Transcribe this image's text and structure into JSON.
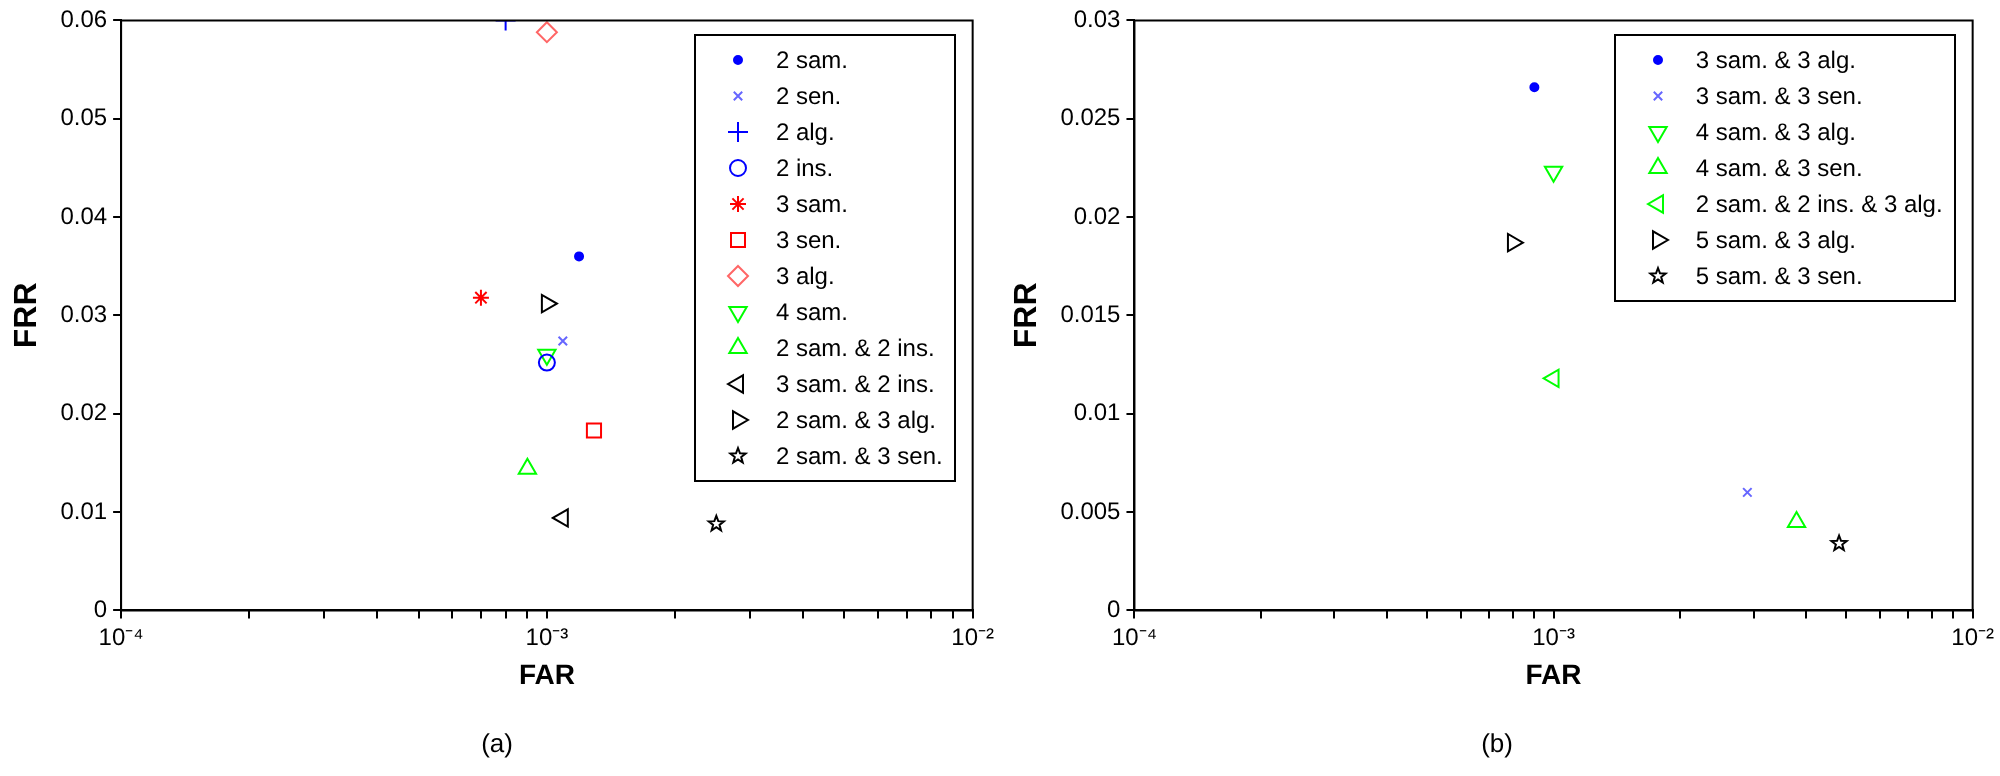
{
  "chart_data": [
    {
      "type": "scatter",
      "title": "(a)",
      "xlabel": "FAR",
      "ylabel": "FRR",
      "log": "x",
      "grid": false,
      "legend": "top right",
      "xlim": [
        0.0001,
        0.01
      ],
      "xticks": [
        {
          "value": 0.0001,
          "label": "10⁻⁴"
        },
        {
          "value": 0.0002,
          "label": null
        },
        {
          "value": 0.0003,
          "label": null
        },
        {
          "value": 0.0004,
          "label": null
        },
        {
          "value": 0.0005,
          "label": null
        },
        {
          "value": 0.0006,
          "label": null
        },
        {
          "value": 0.0007,
          "label": null
        },
        {
          "value": 0.0008,
          "label": null
        },
        {
          "value": 0.0009,
          "label": null
        },
        {
          "value": 0.001,
          "label": "10⁻³"
        },
        {
          "value": 0.002,
          "label": null
        },
        {
          "value": 0.003,
          "label": null
        },
        {
          "value": 0.004,
          "label": null
        },
        {
          "value": 0.005,
          "label": null
        },
        {
          "value": 0.006,
          "label": null
        },
        {
          "value": 0.007,
          "label": null
        },
        {
          "value": 0.008,
          "label": null
        },
        {
          "value": 0.009,
          "label": null
        },
        {
          "value": 0.01,
          "label": "10⁻²"
        }
      ],
      "ylim": [
        0,
        0.06
      ],
      "yticks": [
        0,
        0.01,
        0.02,
        0.03,
        0.04,
        0.05,
        0.06
      ],
      "series": [
        {
          "name": "2 sam.",
          "color": "#0000ff",
          "marker": "point",
          "x": [
            0.00119
          ],
          "values": [
            0.036
          ]
        },
        {
          "name": "2 sen.",
          "color": "#6666ff",
          "marker": "x",
          "x": [
            0.00109
          ],
          "values": [
            0.0274
          ]
        },
        {
          "name": "2 alg.",
          "color": "#0000ff",
          "marker": "plus",
          "x": [
            0.0008
          ],
          "values": [
            0.06
          ]
        },
        {
          "name": "2 ins.",
          "color": "#0000ff",
          "marker": "circle",
          "x": [
            0.001
          ],
          "values": [
            0.0252
          ]
        },
        {
          "name": "3 sam.",
          "color": "#ff0000",
          "marker": "cross",
          "x": [
            0.0007
          ],
          "values": [
            0.0318
          ]
        },
        {
          "name": "3 sen.",
          "color": "#ff0000",
          "marker": "square",
          "x": [
            0.00129
          ],
          "values": [
            0.0183
          ]
        },
        {
          "name": "3 alg.",
          "color": "#ff6666",
          "marker": "diamond",
          "x": [
            0.001
          ],
          "values": [
            0.0588
          ]
        },
        {
          "name": "4 sam.",
          "color": "#00ff00",
          "marker": "triangle-down",
          "x": [
            0.001
          ],
          "values": [
            0.026
          ]
        },
        {
          "name": "2 sam. & 2 ins.",
          "color": "#00ff00",
          "marker": "triangle-up",
          "x": [
            0.0009
          ],
          "values": [
            0.0144
          ]
        },
        {
          "name": "3 sam. & 2 ins.",
          "color": "#000000",
          "marker": "triangle-left",
          "x": [
            0.00109
          ],
          "values": [
            0.0094
          ]
        },
        {
          "name": "2 sam. & 3 alg.",
          "color": "#000000",
          "marker": "triangle-right",
          "x": [
            0.001
          ],
          "values": [
            0.0312
          ]
        },
        {
          "name": "2 sam. & 3 sen.",
          "color": "#000000",
          "marker": "star",
          "x": [
            0.0025
          ],
          "values": [
            0.0088
          ]
        }
      ]
    },
    {
      "type": "scatter",
      "title": "(b)",
      "xlabel": "FAR",
      "ylabel": "FRR",
      "log": "x",
      "grid": false,
      "legend": "top right",
      "xlim": [
        0.0001,
        0.01
      ],
      "xticks": [
        {
          "value": 0.0001,
          "label": "10⁻⁴"
        },
        {
          "value": 0.0002,
          "label": null
        },
        {
          "value": 0.0003,
          "label": null
        },
        {
          "value": 0.0004,
          "label": null
        },
        {
          "value": 0.0005,
          "label": null
        },
        {
          "value": 0.0006,
          "label": null
        },
        {
          "value": 0.0007,
          "label": null
        },
        {
          "value": 0.0008,
          "label": null
        },
        {
          "value": 0.0009,
          "label": null
        },
        {
          "value": 0.001,
          "label": "10⁻³"
        },
        {
          "value": 0.002,
          "label": null
        },
        {
          "value": 0.003,
          "label": null
        },
        {
          "value": 0.004,
          "label": null
        },
        {
          "value": 0.005,
          "label": null
        },
        {
          "value": 0.006,
          "label": null
        },
        {
          "value": 0.007,
          "label": null
        },
        {
          "value": 0.008,
          "label": null
        },
        {
          "value": 0.009,
          "label": null
        },
        {
          "value": 0.01,
          "label": "10⁻²"
        }
      ],
      "ylim": [
        0,
        0.03
      ],
      "yticks": [
        0,
        0.005,
        0.01,
        0.015,
        0.02,
        0.025,
        0.03
      ],
      "series": [
        {
          "name": "3 sam. & 3 alg.",
          "color": "#0000ff",
          "marker": "point",
          "x": [
            0.0009
          ],
          "values": [
            0.0266
          ]
        },
        {
          "name": "3 sam. & 3 sen.",
          "color": "#6666ff",
          "marker": "x",
          "x": [
            0.0029
          ],
          "values": [
            0.006
          ]
        },
        {
          "name": "4 sam. & 3 alg.",
          "color": "#00ff00",
          "marker": "triangle-down",
          "x": [
            0.001
          ],
          "values": [
            0.0223
          ]
        },
        {
          "name": "4 sam. & 3 sen.",
          "color": "#00ff00",
          "marker": "triangle-up",
          "x": [
            0.0038
          ],
          "values": [
            0.0045
          ]
        },
        {
          "name": "2 sam. & 2 ins. & 3 alg.",
          "color": "#00ff00",
          "marker": "triangle-left",
          "x": [
            0.001
          ],
          "values": [
            0.0118
          ]
        },
        {
          "name": "5 sam. & 3 alg.",
          "color": "#000000",
          "marker": "triangle-right",
          "x": [
            0.0008
          ],
          "values": [
            0.0187
          ]
        },
        {
          "name": "5 sam. & 3 sen.",
          "color": "#000000",
          "marker": "star",
          "x": [
            0.0048
          ],
          "values": [
            0.0034
          ]
        }
      ]
    }
  ]
}
